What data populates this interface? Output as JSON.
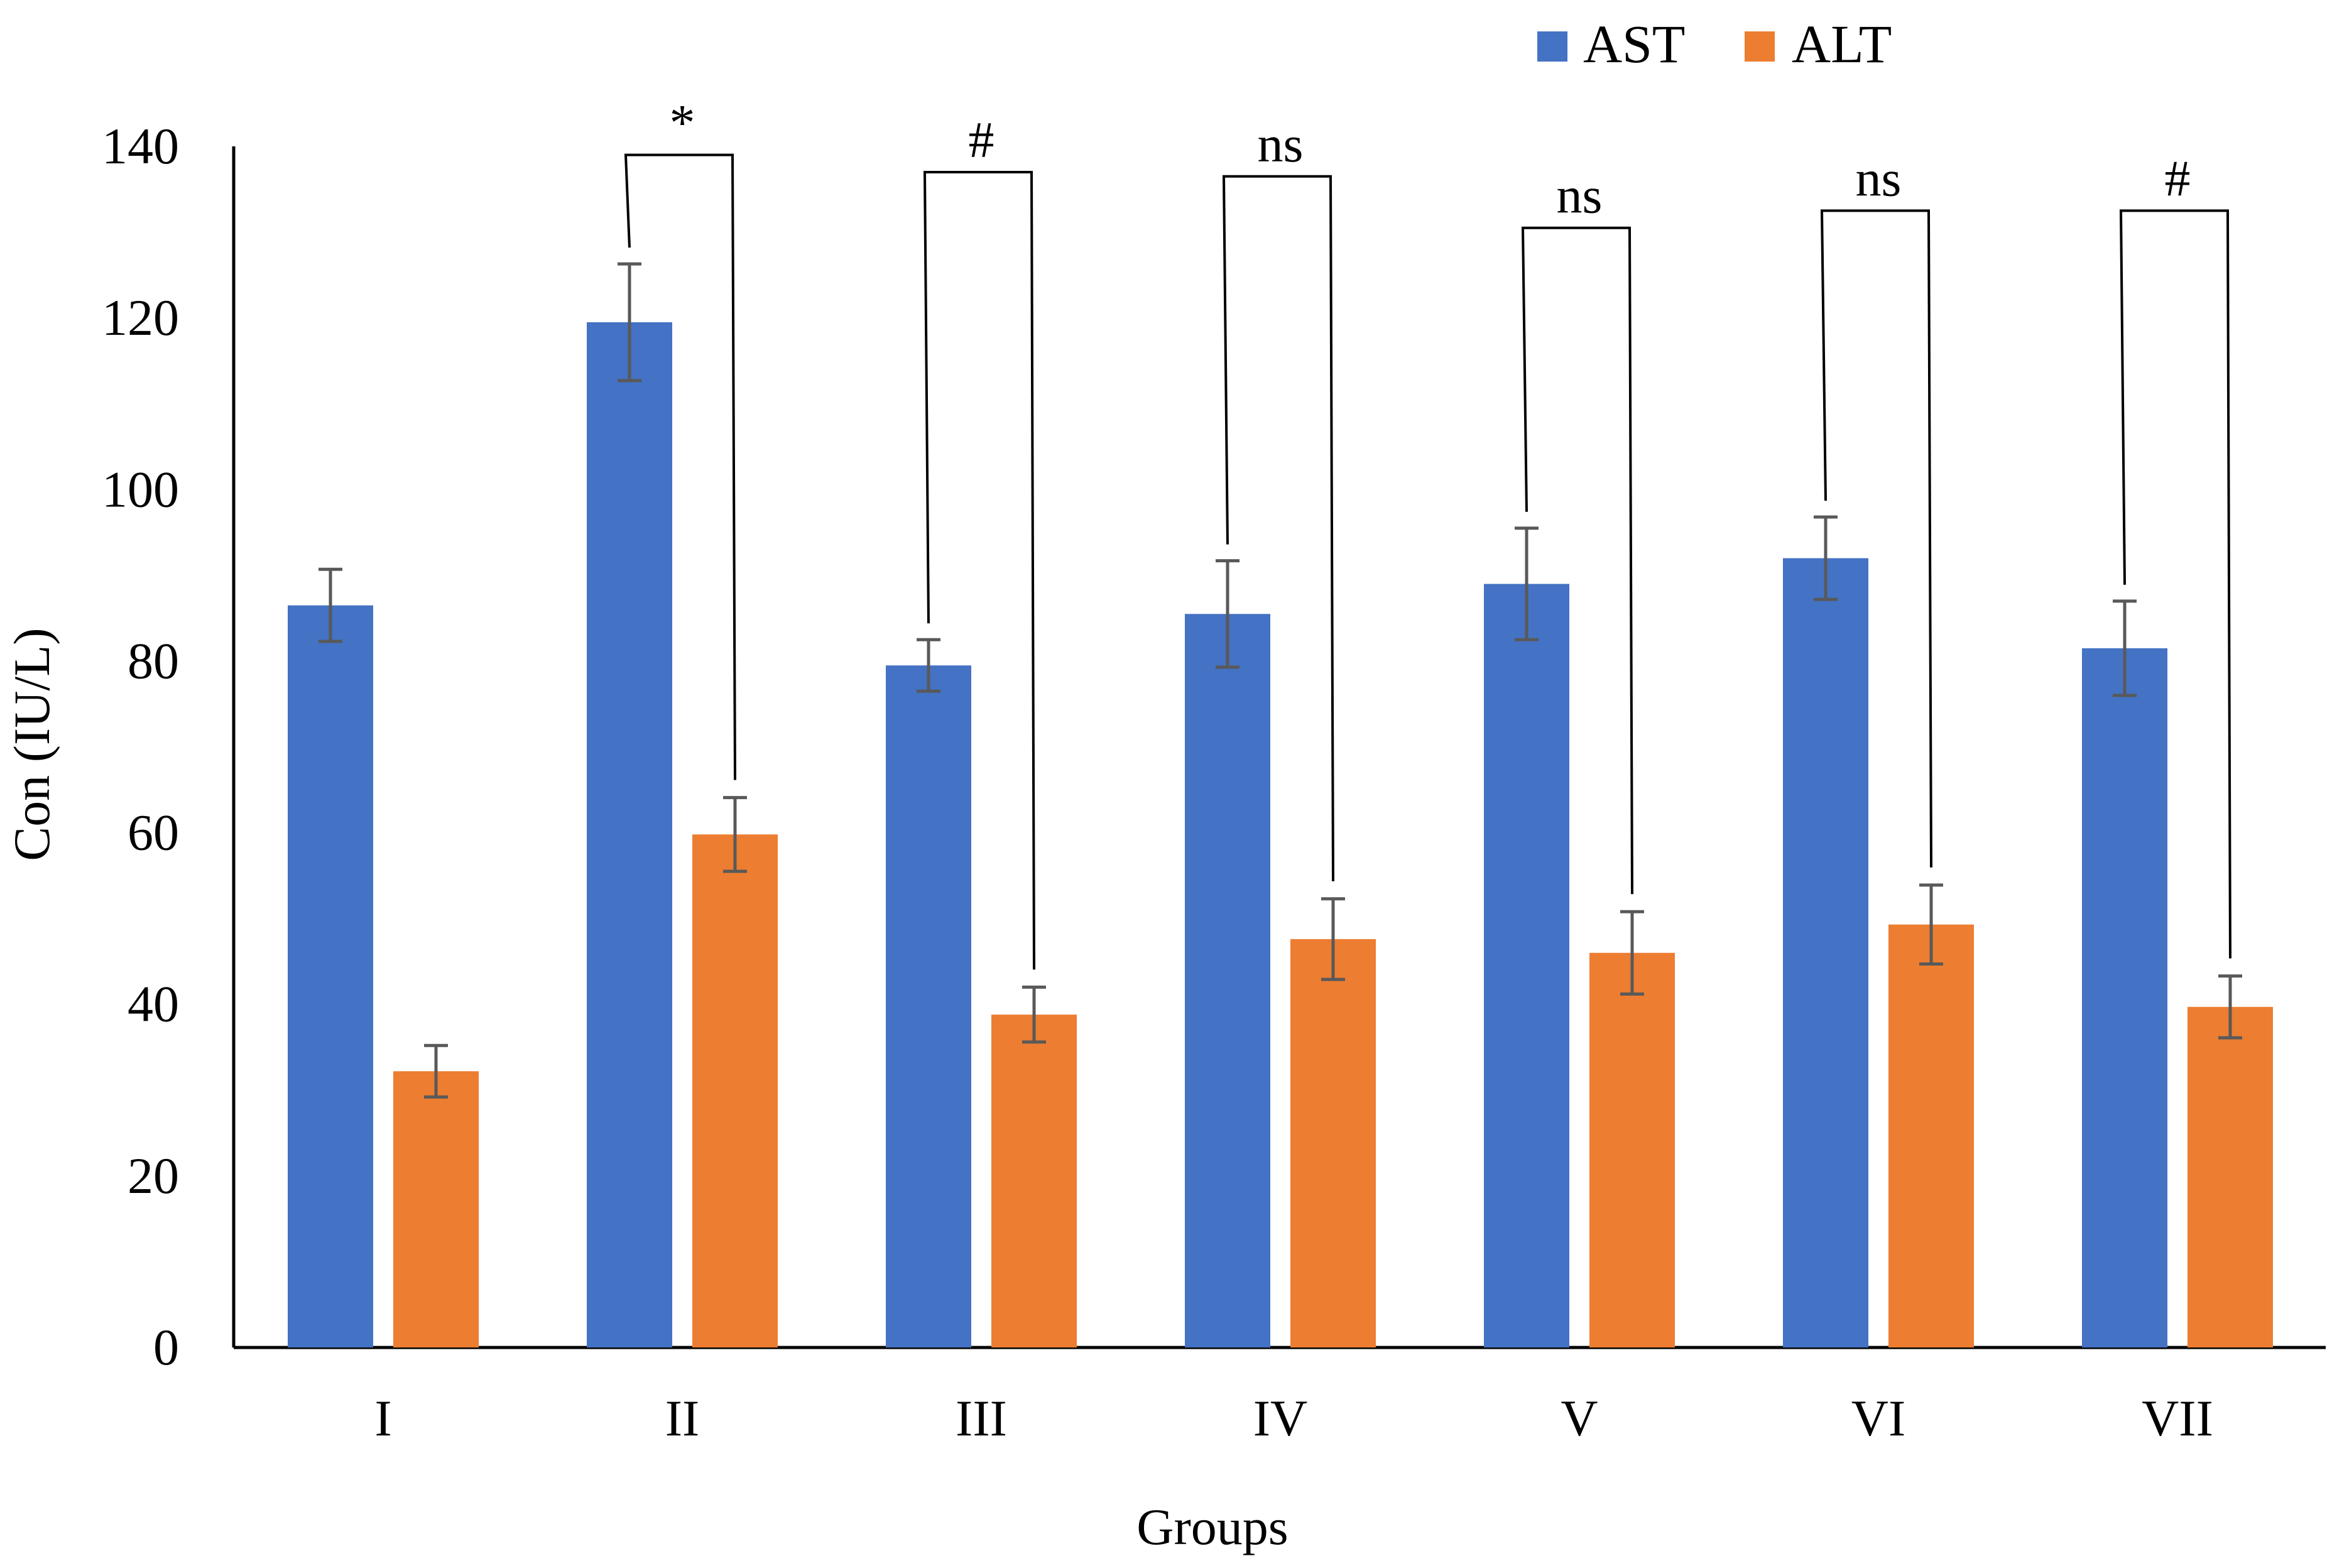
{
  "chart_data": {
    "type": "bar",
    "title": "",
    "xlabel": "Groups",
    "ylabel": "Con (IU/L)",
    "ylim": [
      0,
      140
    ],
    "yticks": [
      0,
      20,
      40,
      60,
      80,
      100,
      120,
      140
    ],
    "grid": false,
    "legend_position": "top-right",
    "categories": [
      "I",
      "II",
      "III",
      "IV",
      "V",
      "VI",
      "VII"
    ],
    "series": [
      {
        "name": "AST",
        "color": "#4472C4",
        "values": [
          86.5,
          119.5,
          79.5,
          85.5,
          89,
          92,
          81.5
        ],
        "errors": [
          4.2,
          6.8,
          3.0,
          6.2,
          6.5,
          4.8,
          5.5
        ]
      },
      {
        "name": "ALT",
        "color": "#ED7D31",
        "values": [
          32.2,
          59.8,
          38.8,
          47.6,
          46,
          49.3,
          39.7
        ],
        "errors": [
          3.0,
          4.3,
          3.2,
          4.7,
          4.8,
          4.6,
          3.6
        ]
      }
    ],
    "error_bar_color": "#595959",
    "significance": [
      {
        "category": "II",
        "label": "*",
        "level": 139
      },
      {
        "category": "III",
        "label": "#",
        "level": 137
      },
      {
        "category": "IV",
        "label": "ns",
        "level": 136.5
      },
      {
        "category": "V",
        "label": "ns",
        "level": 130.5
      },
      {
        "category": "VI",
        "label": "ns",
        "level": 132.5
      },
      {
        "category": "VII",
        "label": "#",
        "level": 132.5
      }
    ]
  }
}
